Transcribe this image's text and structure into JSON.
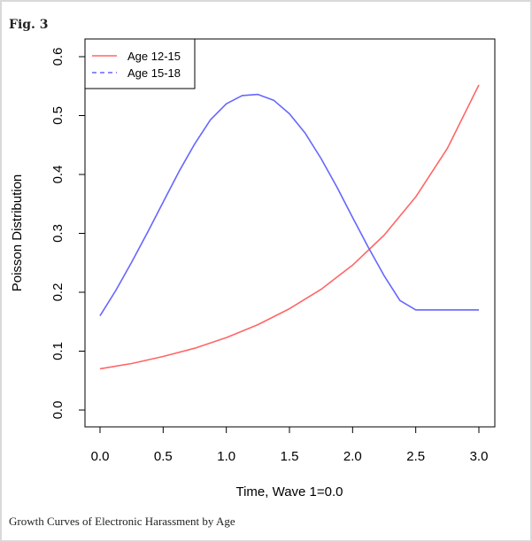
{
  "figure": {
    "label": "Fig. 3",
    "caption": "Growth Curves of Electronic Harassment by Age"
  },
  "chart_data": {
    "type": "line",
    "title": "",
    "xlabel": "Time, Wave 1=0.0",
    "ylabel": "Poisson Distribution",
    "xlim": [
      0.0,
      3.0
    ],
    "ylim": [
      0.0,
      0.6
    ],
    "xticks": [
      "0.0",
      "0.5",
      "1.0",
      "1.5",
      "2.0",
      "2.5",
      "3.0"
    ],
    "yticks": [
      "0.0",
      "0.1",
      "0.2",
      "0.3",
      "0.4",
      "0.5",
      "0.6"
    ],
    "legend_position": "top-left",
    "grid": false,
    "series": [
      {
        "name": "Age 12-15",
        "color": "#ff6666",
        "line_style": "solid",
        "x": [
          0.0,
          0.25,
          0.5,
          0.75,
          1.0,
          1.25,
          1.5,
          1.75,
          2.0,
          2.25,
          2.5,
          2.75,
          3.0
        ],
        "y": [
          0.07,
          0.079,
          0.091,
          0.105,
          0.123,
          0.145,
          0.172,
          0.205,
          0.246,
          0.297,
          0.362,
          0.444,
          0.552
        ]
      },
      {
        "name": "Age 15-18",
        "color": "#6666ff",
        "line_style": "dashed",
        "x": [
          0.0,
          0.125,
          0.25,
          0.375,
          0.5,
          0.625,
          0.75,
          0.875,
          1.0,
          1.125,
          1.25,
          1.375,
          1.5,
          1.625,
          1.75,
          1.875,
          2.0,
          2.125,
          2.25,
          2.375,
          2.5,
          2.625,
          2.75,
          2.875,
          3.0
        ],
        "y": [
          0.16,
          0.203,
          0.251,
          0.301,
          0.353,
          0.405,
          0.452,
          0.493,
          0.52,
          0.534,
          0.536,
          0.526,
          0.503,
          0.47,
          0.427,
          0.379,
          0.327,
          0.276,
          0.228,
          0.186,
          0.17,
          0.17,
          0.17,
          0.17,
          0.17
        ]
      }
    ]
  }
}
